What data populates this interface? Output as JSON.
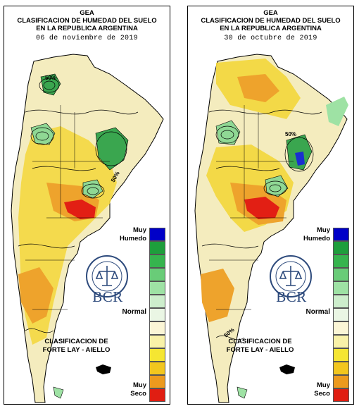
{
  "panels": [
    {
      "gea": "GEA",
      "title1": "CLASIFICACION DE HUMEDAD DEL SUELO",
      "title2": "EN LA REPUBLICA ARGENTINA",
      "date": "06 de noviembre de 2019",
      "contour_labels": [
        "50%",
        "50%"
      ]
    },
    {
      "gea": "GEA",
      "title1": "CLASIFICACION DE HUMEDAD DEL SUELO",
      "title2": "EN LA REPUBLICA ARGENTINA",
      "date": "30 de octubre de 2019",
      "contour_labels": [
        "50%",
        "50%"
      ]
    }
  ],
  "legend": {
    "top_label_1": "Muy",
    "top_label_2": "Humedo",
    "middle_label": "Normal",
    "bottom_label_1": "Muy",
    "bottom_label_2": "Seco",
    "classification_1": "CLASIFICACION DE",
    "classification_2": "FORTE LAY - AIELLO",
    "colors": [
      "#0000c8",
      "#1e9e3c",
      "#36b44e",
      "#69cc78",
      "#9ee2a4",
      "#cdeecc",
      "#eaf6e4",
      "#fbf6d6",
      "#f9f2a8",
      "#f5e632",
      "#f2c61e",
      "#ec9a1e",
      "#e8641e",
      "#e01e12"
    ]
  },
  "logo": {
    "name": "BCR"
  },
  "map_colors": {
    "wet": "#3aa64f",
    "moist": "#8fd894",
    "normal": "#f4ecbe",
    "dry_mild": "#f3d73a",
    "dry": "#eea32c",
    "very_dry": "#e21f14",
    "deep_blue": "#1a2fd0"
  }
}
